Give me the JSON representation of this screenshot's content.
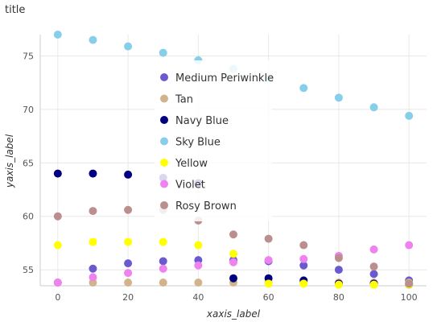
{
  "chart_data": {
    "type": "scatter",
    "title": "title",
    "xlabel": "xaxis_label",
    "ylabel": "yaxis_label",
    "xlim": [
      -5,
      105
    ],
    "ylim": [
      53.5,
      77
    ],
    "xticks": [
      0,
      20,
      40,
      60,
      80,
      100
    ],
    "yticks": [
      55,
      60,
      65,
      70,
      75
    ],
    "grid": true,
    "legend_position": "center-right",
    "series": [
      {
        "name": "Medium Periwinkle",
        "color": "#6A5ACD",
        "x": [
          0,
          10,
          20,
          30,
          40,
          50,
          60,
          70,
          80,
          90,
          100
        ],
        "y": [
          53.8,
          55.1,
          55.6,
          55.8,
          55.9,
          55.9,
          55.8,
          55.4,
          55.0,
          54.6,
          54.0
        ]
      },
      {
        "name": "Tan",
        "color": "#D2B48C",
        "x": [
          0,
          10,
          20,
          30,
          40,
          50,
          60,
          70,
          80,
          90,
          100
        ],
        "y": [
          53.8,
          53.8,
          53.8,
          53.8,
          53.8,
          53.8,
          53.8,
          53.8,
          53.8,
          53.8,
          53.8
        ]
      },
      {
        "name": "Navy Blue",
        "color": "#000080",
        "x": [
          0,
          10,
          20,
          30,
          40,
          50,
          60,
          70,
          80,
          90,
          100
        ],
        "y": [
          64.0,
          64.0,
          63.9,
          63.6,
          63.1,
          54.2,
          54.2,
          54.0,
          53.7,
          53.7,
          53.6
        ]
      },
      {
        "name": "Sky Blue",
        "color": "#87CEEB",
        "x": [
          0,
          10,
          20,
          30,
          40,
          50,
          60,
          70,
          80,
          90,
          100
        ],
        "y": [
          77.0,
          76.5,
          75.9,
          75.3,
          74.6,
          73.8,
          72.9,
          72.0,
          71.1,
          70.2,
          69.4
        ]
      },
      {
        "name": "Yellow",
        "color": "#FFFF00",
        "x": [
          0,
          10,
          20,
          30,
          40,
          50,
          60,
          70,
          80,
          90,
          100
        ],
        "y": [
          57.3,
          57.6,
          57.6,
          57.6,
          57.3,
          56.5,
          53.7,
          53.7,
          53.6,
          53.6,
          53.6
        ]
      },
      {
        "name": "Violet",
        "color": "#EE82EE",
        "x": [
          0,
          10,
          20,
          30,
          40,
          50,
          60,
          70,
          80,
          90,
          100
        ],
        "y": [
          53.8,
          54.3,
          54.7,
          55.1,
          55.4,
          55.7,
          55.9,
          56.0,
          56.3,
          56.9,
          57.3
        ]
      },
      {
        "name": "Rosy Brown",
        "color": "#BC8F8F",
        "x": [
          0,
          10,
          20,
          30,
          40,
          50,
          60,
          70,
          80,
          90,
          100
        ],
        "y": [
          60.0,
          60.5,
          60.6,
          60.6,
          59.6,
          58.3,
          57.9,
          57.3,
          56.1,
          55.3,
          53.7
        ]
      }
    ]
  }
}
